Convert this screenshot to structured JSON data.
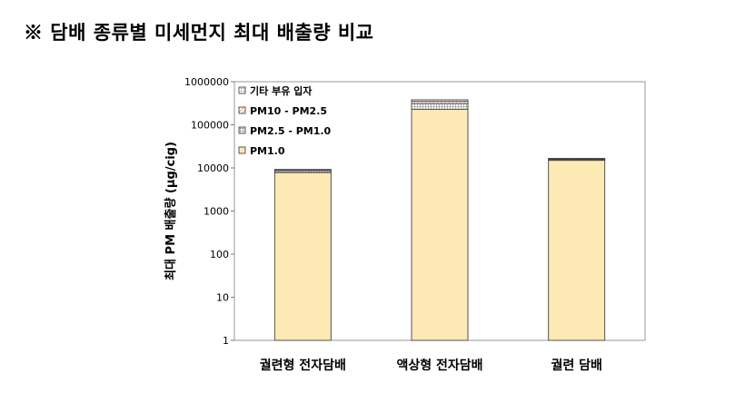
{
  "header": {
    "title": "※ 담배 종류별 미세먼지 최대 배출량 비교"
  },
  "chart_data": {
    "type": "bar",
    "stacked": true,
    "y_scale": "log",
    "ylim": [
      1,
      1000000
    ],
    "yticks": [
      "1",
      "10",
      "100",
      "1000",
      "10000",
      "100000",
      "1000000"
    ],
    "ylabel": "최대 PM 배출량 (μg/cig)",
    "xlabel": "",
    "grid": false,
    "legend_position": "top-left",
    "categories": [
      "궐련형 전자담배",
      "액상형 전자담배",
      "궐련 담배"
    ],
    "series": [
      {
        "name": "PM1.0",
        "color": "#fde9b3",
        "pattern": "solid",
        "values": [
          7800,
          230000,
          15000
        ]
      },
      {
        "name": "PM2.5 - PM1.0",
        "color": "#d9d9d9",
        "pattern": "grid",
        "values": [
          900,
          80000,
          700
        ]
      },
      {
        "name": "PM10 - PM2.5",
        "color": "#e98b3a",
        "pattern": "hatch",
        "values": [
          150,
          40000,
          300
        ]
      },
      {
        "name": "기타 부유 입자",
        "color": "#dddddd",
        "pattern": "dots",
        "values": [
          100,
          30000,
          200
        ]
      }
    ],
    "legend_order": [
      "기타 부유 입자",
      "PM10 - PM2.5",
      "PM2.5 - PM1.0",
      "PM1.0"
    ]
  }
}
